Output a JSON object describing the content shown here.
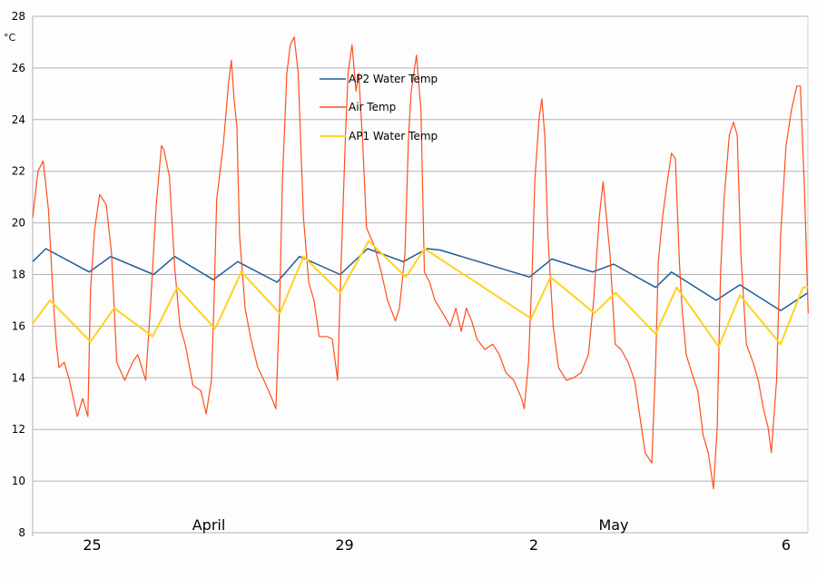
{
  "chart_data": {
    "type": "line",
    "title": "",
    "ylabel": "°C",
    "xlabel": "",
    "ylim": [
      8,
      28
    ],
    "yticks": [
      8,
      10,
      12,
      14,
      16,
      18,
      20,
      22,
      24,
      26,
      28
    ],
    "grid": true,
    "legend_position": "top-center",
    "days": [
      "Apr 24",
      "Apr 25",
      "Apr 26",
      "Apr 27",
      "Apr 28",
      "Apr 29",
      "Apr 30",
      "May 1",
      "May 2",
      "May 3",
      "May 4",
      "May 5",
      "May 6"
    ],
    "xlim": [
      [
        "Apr 24",
        0
      ],
      [
        "May 6",
        7.3
      ]
    ],
    "xticks": [
      {
        "label": "25",
        "day": "Apr 25",
        "hour": 0
      },
      {
        "label": "29",
        "day": "Apr 29",
        "hour": 0
      },
      {
        "label": "2",
        "day": "May 2",
        "hour": 0
      },
      {
        "label": "6",
        "day": "May 6",
        "hour": 0
      }
    ],
    "month_labels": [
      {
        "label": "April",
        "day": "Apr 26",
        "hour": 19
      },
      {
        "label": "May",
        "day": "May 3",
        "hour": 5
      }
    ],
    "series": [
      {
        "name": "AP2 Water Temp",
        "color": "#1f5c99",
        "data": {
          "Apr 24": [
            [
              0,
              18.5
            ],
            [
              5,
              19.0
            ],
            [
              21.5,
              18.1
            ]
          ],
          "Apr 25": [
            [
              5.7,
              18.7
            ],
            [
              22,
              18.0
            ]
          ],
          "Apr 26": [
            [
              6,
              18.7
            ],
            [
              20.7,
              17.8
            ]
          ],
          "Apr 27": [
            [
              6,
              18.5
            ],
            [
              21,
              17.7
            ]
          ],
          "Apr 28": [
            [
              5.5,
              18.7
            ],
            [
              21,
              18.0
            ]
          ],
          "Apr 29": [
            [
              7.4,
              19.0
            ],
            [
              21,
              18.5
            ]
          ],
          "Apr 30": [
            [
              6,
              19.0
            ],
            [
              11,
              18.95
            ]
          ],
          "May 1": [
            [
              21,
              17.9
            ]
          ],
          "May 2": [
            [
              5.5,
              18.6
            ],
            [
              21,
              18.1
            ]
          ],
          "May 3": [
            [
              5,
              18.4
            ],
            [
              21,
              17.5
            ]
          ],
          "May 4": [
            [
              3,
              18.1
            ],
            [
              20,
              17.0
            ]
          ],
          "May 5": [
            [
              5,
              17.6
            ],
            [
              20.5,
              16.6
            ]
          ],
          "May 6": [
            [
              7,
              17.3
            ]
          ]
        }
      },
      {
        "name": "Air Temp",
        "color": "#ff4e1f",
        "data": {
          "Apr 24": [
            [
              0,
              20.2
            ],
            [
              2,
              22.0
            ],
            [
              4,
              22.4
            ],
            [
              6,
              20.5
            ],
            [
              8,
              16.7
            ],
            [
              9,
              15.3
            ],
            [
              10,
              14.4
            ],
            [
              12,
              14.6
            ],
            [
              14,
              13.9
            ],
            [
              17,
              12.5
            ],
            [
              19,
              13.2
            ],
            [
              21,
              12.5
            ],
            [
              22,
              17.4
            ],
            [
              23.5,
              19.7
            ]
          ],
          "Apr 25": [
            [
              1.5,
              21.1
            ],
            [
              4,
              20.7
            ],
            [
              6,
              18.8
            ],
            [
              7,
              16.7
            ],
            [
              8,
              14.6
            ],
            [
              11,
              13.9
            ],
            [
              14,
              14.6
            ],
            [
              16,
              14.9
            ],
            [
              19,
              13.9
            ],
            [
              21,
              17.1
            ],
            [
              23,
              20.7
            ]
          ],
          "Apr 26": [
            [
              1,
              23.0
            ],
            [
              2,
              22.8
            ],
            [
              4,
              21.8
            ],
            [
              6,
              18.3
            ],
            [
              8,
              16.0
            ],
            [
              10,
              15.3
            ],
            [
              13,
              13.7
            ],
            [
              16,
              13.5
            ],
            [
              18,
              12.6
            ],
            [
              20,
              13.9
            ],
            [
              21,
              17.0
            ],
            [
              22,
              20.9
            ]
          ],
          "Apr 27": [
            [
              0.5,
              23.0
            ],
            [
              2.6,
              25.5
            ],
            [
              3.6,
              26.3
            ],
            [
              4.6,
              24.8
            ],
            [
              5.7,
              23.7
            ],
            [
              6.7,
              19.5
            ],
            [
              8.8,
              16.7
            ],
            [
              11,
              15.5
            ],
            [
              13.6,
              14.4
            ],
            [
              16,
              13.9
            ],
            [
              19,
              13.2
            ],
            [
              20.5,
              12.8
            ],
            [
              22,
              17.0
            ],
            [
              23,
              21.6
            ]
          ],
          "Apr 28": [
            [
              0.7,
              25.8
            ],
            [
              2,
              26.9
            ],
            [
              3.5,
              27.2
            ],
            [
              5,
              25.8
            ],
            [
              7,
              20.2
            ],
            [
              9,
              17.7
            ],
            [
              11,
              17.0
            ],
            [
              13,
              15.6
            ],
            [
              16,
              15.6
            ],
            [
              18,
              15.5
            ],
            [
              20,
              13.9
            ],
            [
              21,
              17.4
            ],
            [
              23,
              23.4
            ]
          ],
          "Apr 29": [
            [
              0,
              25.8
            ],
            [
              1.5,
              26.9
            ],
            [
              3,
              25.1
            ],
            [
              4,
              25.8
            ],
            [
              5.6,
              23.0
            ],
            [
              7,
              19.8
            ],
            [
              10,
              19.1
            ],
            [
              12.6,
              18.1
            ],
            [
              15,
              17.0
            ],
            [
              18,
              16.2
            ],
            [
              19.5,
              16.7
            ],
            [
              21.6,
              18.8
            ],
            [
              23,
              23.4
            ]
          ],
          "Apr 30": [
            [
              0,
              25.1
            ],
            [
              2,
              26.5
            ],
            [
              3.7,
              24.4
            ],
            [
              5,
              18.1
            ],
            [
              7,
              17.7
            ],
            [
              9,
              17.0
            ],
            [
              12,
              16.5
            ],
            [
              14.8,
              16.0
            ],
            [
              17,
              16.7
            ],
            [
              19,
              15.8
            ],
            [
              21,
              16.7
            ],
            [
              23,
              16.2
            ]
          ],
          "May 1": [
            [
              1,
              15.5
            ],
            [
              4,
              15.1
            ],
            [
              7,
              15.3
            ],
            [
              9.5,
              14.9
            ],
            [
              12,
              14.2
            ],
            [
              15,
              13.9
            ],
            [
              18,
              13.2
            ],
            [
              19,
              12.8
            ],
            [
              20.6,
              14.6
            ],
            [
              22,
              18.1
            ],
            [
              23,
              21.6
            ]
          ],
          "May 2": [
            [
              0.7,
              24.1
            ],
            [
              1.7,
              24.8
            ],
            [
              2.8,
              23.4
            ],
            [
              4,
              19.5
            ],
            [
              6,
              16.0
            ],
            [
              8,
              14.4
            ],
            [
              11,
              13.9
            ],
            [
              13.8,
              14.0
            ],
            [
              16.6,
              14.2
            ],
            [
              19.4,
              14.9
            ],
            [
              21.4,
              17.0
            ],
            [
              23.5,
              20.2
            ]
          ],
          "May 3": [
            [
              1,
              21.6
            ],
            [
              2,
              20.5
            ],
            [
              3.6,
              18.8
            ],
            [
              5.6,
              15.3
            ],
            [
              7.8,
              15.1
            ],
            [
              10.5,
              14.6
            ],
            [
              13,
              13.9
            ],
            [
              15,
              12.5
            ],
            [
              17,
              11.1
            ],
            [
              19.5,
              10.7
            ],
            [
              21,
              14.6
            ],
            [
              22,
              18.5
            ],
            [
              23.6,
              20.2
            ]
          ],
          "May 4": [
            [
              1,
              21.3
            ],
            [
              3,
              22.7
            ],
            [
              4.5,
              22.5
            ],
            [
              6,
              18.5
            ],
            [
              7,
              16.7
            ],
            [
              8.6,
              14.9
            ],
            [
              10.7,
              14.2
            ],
            [
              13,
              13.5
            ],
            [
              15,
              11.8
            ],
            [
              17,
              11.1
            ],
            [
              19,
              9.7
            ],
            [
              20.4,
              12.1
            ],
            [
              21.7,
              18.1
            ],
            [
              23,
              20.9
            ]
          ],
          "May 5": [
            [
              1,
              23.4
            ],
            [
              2.6,
              23.9
            ],
            [
              4,
              23.4
            ],
            [
              5.4,
              18.8
            ],
            [
              7.5,
              15.3
            ],
            [
              10,
              14.6
            ],
            [
              12,
              13.9
            ],
            [
              14,
              12.8
            ],
            [
              15.7,
              12.1
            ],
            [
              17,
              11.1
            ],
            [
              19,
              13.9
            ],
            [
              20.5,
              19.5
            ],
            [
              22.6,
              23.0
            ]
          ],
          "May 6": [
            [
              0.7,
              24.4
            ],
            [
              2.7,
              25.3
            ],
            [
              4,
              25.3
            ],
            [
              5.5,
              21.6
            ],
            [
              7,
              16.5
            ]
          ]
        }
      },
      {
        "name": "AP1 Water Temp",
        "color": "#ffd320",
        "data": {
          "Apr 24": [
            [
              0,
              16.1
            ],
            [
              6.6,
              17.0
            ],
            [
              22,
              15.4
            ]
          ],
          "Apr 25": [
            [
              7,
              16.7
            ],
            [
              21.6,
              15.6
            ]
          ],
          "Apr 26": [
            [
              7,
              17.5
            ],
            [
              21.4,
              15.9
            ]
          ],
          "Apr 27": [
            [
              7.4,
              18.1
            ],
            [
              22,
              16.5
            ]
          ],
          "Apr 28": [
            [
              7,
              18.7
            ],
            [
              21,
              17.3
            ]
          ],
          "Apr 29": [
            [
              7.8,
              19.3
            ],
            [
              22,
              17.9
            ]
          ],
          "Apr 30": [
            [
              5,
              19.0
            ]
          ],
          "May 1": [
            [
              21.6,
              16.3
            ]
          ],
          "May 2": [
            [
              5,
              17.9
            ],
            [
              21.7,
              16.5
            ]
          ],
          "May 3": [
            [
              5.7,
              17.3
            ],
            [
              21,
              15.7
            ]
          ],
          "May 4": [
            [
              5,
              17.5
            ],
            [
              21,
              15.2
            ]
          ],
          "May 5": [
            [
              5,
              17.2
            ],
            [
              20.5,
              15.3
            ]
          ],
          "May 6": [
            [
              5,
              17.5
            ],
            [
              7,
              17.5
            ]
          ]
        }
      }
    ]
  }
}
